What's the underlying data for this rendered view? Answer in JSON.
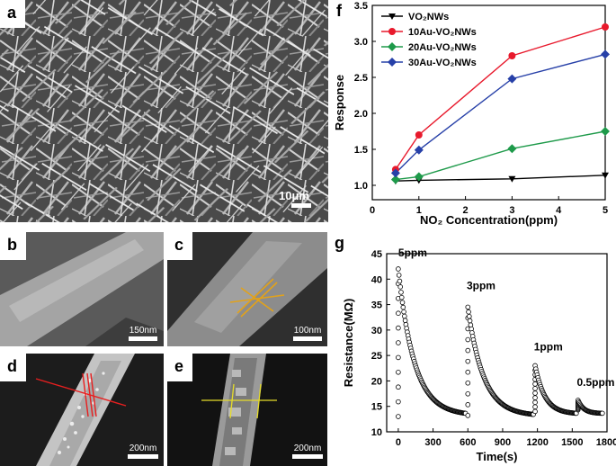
{
  "panels": {
    "a": {
      "label": "a",
      "scale": "10μm"
    },
    "b": {
      "label": "b",
      "scale": "150nm"
    },
    "c": {
      "label": "c",
      "scale": "100nm"
    },
    "d": {
      "label": "d",
      "scale": "200nm"
    },
    "e": {
      "label": "e",
      "scale": "200nm"
    },
    "f": {
      "label": "f"
    },
    "g": {
      "label": "g"
    }
  },
  "chart_data": [
    {
      "id": "f",
      "type": "line",
      "xlabel": "NO₂ Concentration(ppm)",
      "ylabel": "Response",
      "xlim": [
        0,
        5
      ],
      "ylim": [
        0.8,
        3.5
      ],
      "xticks": [
        0,
        1,
        2,
        3,
        4,
        5
      ],
      "yticks": [
        1.0,
        1.5,
        2.0,
        2.5,
        3.0,
        3.5
      ],
      "legend_position": "top-left",
      "x": [
        0.5,
        1,
        3,
        5
      ],
      "series": [
        {
          "name": "VO₂NWs",
          "color": "#000000",
          "marker": "triangle-down",
          "values": [
            1.06,
            1.07,
            1.09,
            1.14
          ]
        },
        {
          "name": "10Au-VO₂NWs",
          "color": "#e8192c",
          "marker": "circle",
          "values": [
            1.22,
            1.7,
            2.8,
            3.2
          ]
        },
        {
          "name": "20Au-VO₂NWs",
          "color": "#1e9a4a",
          "marker": "diamond",
          "values": [
            1.08,
            1.12,
            1.51,
            1.75
          ]
        },
        {
          "name": "30Au-VO₂NWs",
          "color": "#2740a8",
          "marker": "diamond",
          "values": [
            1.17,
            1.49,
            2.48,
            2.82
          ]
        }
      ]
    },
    {
      "id": "g",
      "type": "line",
      "xlabel": "Time(s)",
      "ylabel": "Resistance(MΩ)",
      "xlim": [
        -100,
        1800
      ],
      "ylim": [
        10,
        45
      ],
      "xticks": [
        0,
        300,
        600,
        900,
        1200,
        1500,
        1800
      ],
      "yticks": [
        10,
        15,
        20,
        25,
        30,
        35,
        40,
        45
      ],
      "annotations": [
        "5ppm",
        "3ppm",
        "1ppm",
        "0.5ppm"
      ],
      "pulses": [
        {
          "label": "5ppm",
          "t_on": 0,
          "peak": 42.0,
          "baseline_start": 13.0,
          "baseline_end": 13.2,
          "t_end": 580
        },
        {
          "label": "3ppm",
          "t_on": 600,
          "peak": 34.5,
          "baseline_start": 13.2,
          "baseline_end": 13.1,
          "t_end": 1165
        },
        {
          "label": "1ppm",
          "t_on": 1180,
          "peak": 23.0,
          "baseline_start": 14.0,
          "baseline_end": 13.5,
          "t_end": 1535
        },
        {
          "label": "0.5ppm",
          "t_on": 1550,
          "peak": 16.2,
          "baseline_start": 14.3,
          "baseline_end": 13.6,
          "t_end": 1760
        }
      ]
    }
  ]
}
